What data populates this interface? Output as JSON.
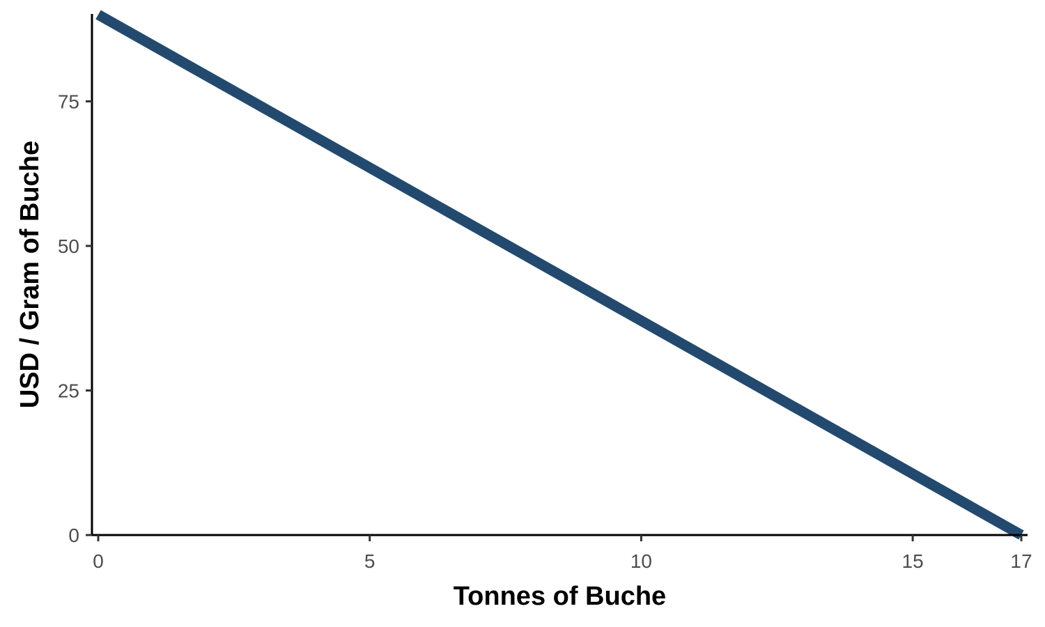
{
  "chart_data": {
    "type": "line",
    "title": "",
    "xlabel": "Tonnes of Buche",
    "ylabel": "USD / Gram of Buche",
    "xlim": [
      0,
      17
    ],
    "ylim": [
      0,
      90
    ],
    "x_ticks": [
      0,
      5,
      10,
      15,
      17
    ],
    "y_ticks": [
      0,
      25,
      50,
      75
    ],
    "grid": false,
    "legend": "none",
    "series": [
      {
        "color": "#234a6e",
        "x": [
          0,
          17
        ],
        "y": [
          90,
          0
        ]
      }
    ]
  }
}
